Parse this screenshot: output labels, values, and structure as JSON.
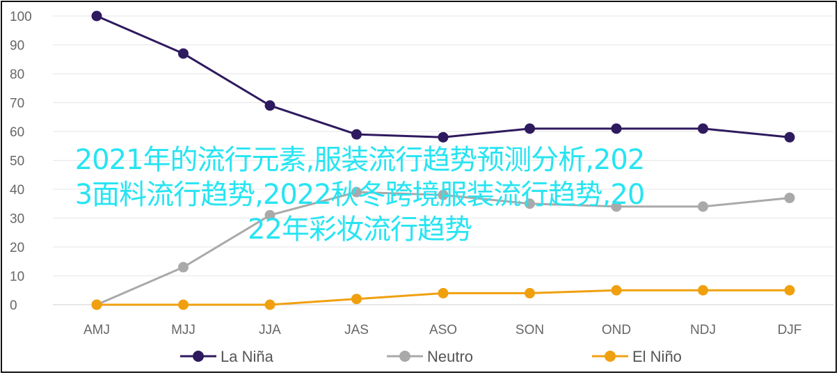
{
  "chart_data": {
    "type": "line",
    "categories": [
      "AMJ",
      "MJJ",
      "JJA",
      "JAS",
      "ASO",
      "SON",
      "OND",
      "NDJ",
      "DJF"
    ],
    "series": [
      {
        "name": "La Niña",
        "color": "#2e1a5e",
        "values": [
          100,
          87,
          69,
          59,
          58,
          61,
          61,
          61,
          58
        ]
      },
      {
        "name": "Neutro",
        "color": "#a9a9a9",
        "values": [
          0,
          13,
          31,
          39,
          38,
          35,
          34,
          34,
          37
        ]
      },
      {
        "name": "El Niño",
        "color": "#f0a00f",
        "values": [
          0,
          0,
          0,
          2,
          4,
          4,
          5,
          5,
          5
        ]
      }
    ],
    "yticks": [
      0,
      10,
      20,
      30,
      40,
      50,
      60,
      70,
      80,
      90,
      100
    ],
    "ylim": [
      0,
      100
    ],
    "grid": true,
    "legend_position": "bottom",
    "title": "",
    "xlabel": "",
    "ylabel": ""
  },
  "overlay": {
    "line1": "2021年的流行元素,服装流行趋势预测分析,202",
    "line2": "3面料流行趋势,2022秋冬跨境服装流行趋势,20",
    "line3": "22年彩妆流行趋势"
  }
}
